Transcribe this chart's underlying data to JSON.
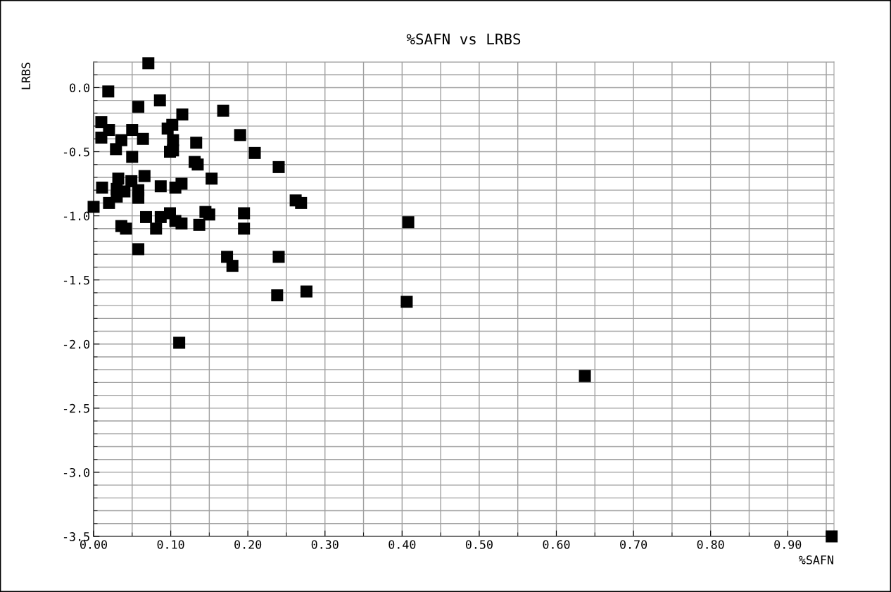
{
  "chart_data": {
    "type": "scatter",
    "title": "%SAFN vs LRBS",
    "xlabel": "%SAFN",
    "ylabel": "LRBS",
    "marker": "square",
    "grid": true,
    "xlim": [
      0,
      0.96
    ],
    "ylim": [
      -3.5,
      0.2
    ],
    "xticks": [
      {
        "value": 0,
        "label": "0.00"
      },
      {
        "value": 0.1,
        "label": "0.10"
      },
      {
        "value": 0.2,
        "label": "0.20"
      },
      {
        "value": 0.3,
        "label": "0.30"
      },
      {
        "value": 0.4,
        "label": "0.40"
      },
      {
        "value": 0.5,
        "label": "0.50"
      },
      {
        "value": 0.6,
        "label": "0.60"
      },
      {
        "value": 0.7,
        "label": "0.70"
      },
      {
        "value": 0.8,
        "label": "0.80"
      },
      {
        "value": 0.9,
        "label": "0.90"
      }
    ],
    "yticks": [
      {
        "value": 0,
        "label": "0.0"
      },
      {
        "value": -0.5,
        "label": "-0.5"
      },
      {
        "value": -1,
        "label": "-1.0"
      },
      {
        "value": -1.5,
        "label": "-1.5"
      },
      {
        "value": -2,
        "label": "-2.0"
      },
      {
        "value": -2.5,
        "label": "-2.5"
      },
      {
        "value": -3,
        "label": "-3.0"
      },
      {
        "value": -3.5,
        "label": "-3.5"
      }
    ],
    "series": [
      {
        "color": "#000000",
        "x": [
          0.071,
          0.019,
          0.086,
          0.058,
          0.168,
          0.115,
          0.01,
          0.02,
          0.102,
          0.096,
          0.05,
          0.036,
          0.01,
          0.064,
          0.19,
          0.103,
          0.133,
          0.029,
          0.103,
          0.099,
          0.209,
          0.05,
          0.131,
          0.135,
          0.24,
          0.066,
          0.032,
          0.153,
          0.114,
          0.087,
          0.049,
          0.106,
          0.011,
          0.058,
          0.04,
          0.03,
          0.058,
          0.03,
          0.02,
          0.262,
          0.269,
          0.0,
          0.145,
          0.15,
          0.195,
          0.068,
          0.087,
          0.099,
          0.106,
          0.114,
          0.137,
          0.081,
          0.036,
          0.042,
          0.195,
          0.408,
          0.058,
          0.173,
          0.18,
          0.24,
          0.238,
          0.276,
          0.406,
          0.111,
          0.637,
          0.957
        ],
        "values": [
          0.19,
          -0.03,
          -0.1,
          -0.15,
          -0.18,
          -0.21,
          -0.27,
          -0.33,
          -0.29,
          -0.32,
          -0.33,
          -0.41,
          -0.39,
          -0.4,
          -0.37,
          -0.41,
          -0.43,
          -0.48,
          -0.49,
          -0.5,
          -0.51,
          -0.54,
          -0.58,
          -0.6,
          -0.62,
          -0.69,
          -0.71,
          -0.71,
          -0.75,
          -0.77,
          -0.73,
          -0.78,
          -0.78,
          -0.8,
          -0.81,
          -0.79,
          -0.86,
          -0.85,
          -0.9,
          -0.88,
          -0.9,
          -0.93,
          -0.97,
          -0.99,
          -0.98,
          -1.01,
          -1.01,
          -0.98,
          -1.04,
          -1.06,
          -1.07,
          -1.1,
          -1.08,
          -1.1,
          -1.1,
          -1.05,
          -1.26,
          -1.32,
          -1.39,
          -1.32,
          -1.62,
          -1.59,
          -1.67,
          -1.99,
          -2.25,
          -3.5
        ]
      }
    ]
  }
}
